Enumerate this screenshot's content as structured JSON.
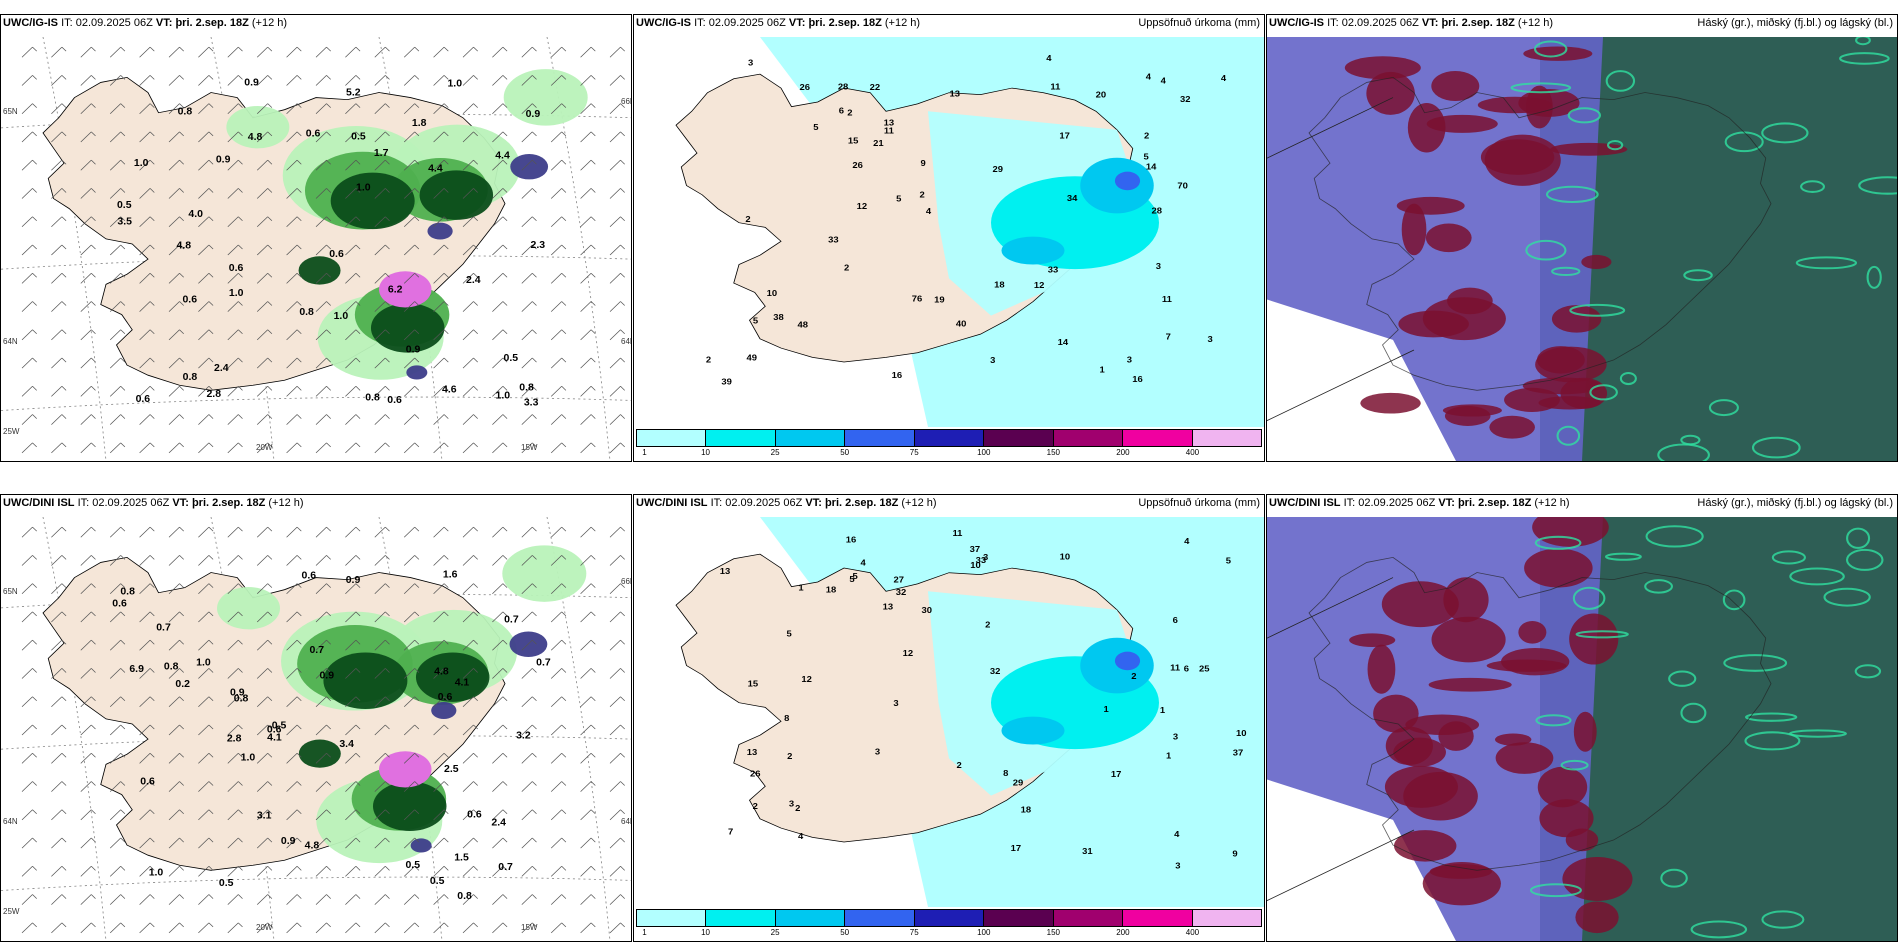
{
  "panels": [
    {
      "id": "p1",
      "model": "UWC/IG-IS",
      "it_label": "IT:",
      "it_value": "02.09.2025 06Z",
      "vt_label": "VT:",
      "vt_value": "þri. 2.sep. 18Z",
      "lead": "(+12 h)",
      "right_title": "",
      "type": "precip_wind",
      "values": [
        "0.6",
        "0.6",
        "0.5",
        "0.9",
        "0.6",
        "0.8",
        "0.5",
        "0.8",
        "0.6",
        "1.0",
        "1.0",
        "0.6",
        "0.9",
        "0.8",
        "0.9",
        "2.8",
        "3.3",
        "4.8",
        "5.2",
        "4.0",
        "3.5",
        "2.3",
        "6.2",
        "4.4",
        "2.4",
        "0.6",
        "1.0",
        "0.8",
        "1.0",
        "0.5",
        "0.8",
        "1.7",
        "4.4",
        "4.8",
        "2.4",
        "1.0",
        "0.9",
        "4.6",
        "1.8",
        "1.0"
      ],
      "axis": [
        "20W",
        "15W",
        "65N",
        "64N",
        "25W",
        "66N",
        "64N"
      ]
    },
    {
      "id": "p2",
      "model": "UWC/IG-IS",
      "it_label": "IT:",
      "it_value": "02.09.2025 06Z",
      "vt_label": "VT:",
      "vt_value": "þri. 2.sep. 18Z",
      "lead": "(+12 h)",
      "right_title": "Uppsöfnuð úrkoma (mm)",
      "type": "accum",
      "values": [
        "4",
        "2",
        "4",
        "3",
        "2",
        "3",
        "4",
        "16",
        "14",
        "10",
        "18",
        "17",
        "49",
        "76",
        "70",
        "39",
        "34",
        "33",
        "21",
        "20",
        "26",
        "28",
        "32",
        "38",
        "48",
        "40",
        "29",
        "19",
        "28",
        "14",
        "13",
        "12",
        "22",
        "33",
        "26",
        "16",
        "13",
        "11",
        "15",
        "11",
        "12",
        "9",
        "5",
        "5",
        "2",
        "2",
        "3",
        "11",
        "6",
        "7",
        "4",
        "5",
        "5",
        "1",
        "2",
        "4",
        "3",
        "3",
        "2"
      ],
      "colorbar": [
        "1",
        "10",
        "25",
        "50",
        "75",
        "100",
        "150",
        "200",
        "400"
      ]
    },
    {
      "id": "p3",
      "model": "UWC/IG-IS",
      "it_label": "IT:",
      "it_value": "02.09.2025 06Z",
      "vt_label": "VT:",
      "vt_value": "þri. 2.sep. 18Z",
      "lead": "(+12 h)",
      "right_title": "Háský (gr.), miðský (fj.bl.) og lágský (bl.)",
      "type": "cloud"
    },
    {
      "id": "p4",
      "model": "UWC/DINI ISL",
      "it_label": "IT:",
      "it_value": "02.09.2025 06Z",
      "vt_label": "VT:",
      "vt_value": "þri. 2.sep. 18Z",
      "lead": "(+12 h)",
      "right_title": "",
      "type": "precip_wind",
      "values": [
        "0.5",
        "0.7",
        "0.9",
        "1.5",
        "0.8",
        "0.7",
        "1.0",
        "0.6",
        "0.5",
        "0.5",
        "0.6",
        "0.5",
        "0.7",
        "0.6",
        "0.9",
        "0.8",
        "2.8",
        "2.4",
        "6.9",
        "3.1",
        "4.1",
        "0.6",
        "0.8",
        "0.6",
        "1.0",
        "4.8",
        "3.2",
        "2.5",
        "0.2",
        "0.6",
        "1.0",
        "4.8",
        "4.1",
        "3.4",
        "0.9",
        "0.7",
        "0.9",
        "0.7",
        "1.6",
        "0.8"
      ],
      "axis": [
        "20W",
        "15W",
        "65N",
        "64N",
        "25W",
        "66N",
        "64N"
      ]
    },
    {
      "id": "p5",
      "model": "UWC/DINI ISL",
      "it_label": "IT:",
      "it_value": "02.09.2025 06Z",
      "vt_label": "VT:",
      "vt_value": "þri. 2.sep. 18Z",
      "lead": "(+12 h)",
      "right_title": "Uppsöfnuð úrkoma (mm)",
      "type": "accum",
      "values": [
        "2",
        "2",
        "1",
        "4",
        "3",
        "2",
        "17",
        "4",
        "5",
        "4",
        "8",
        "10",
        "9",
        "10",
        "18",
        "30",
        "32",
        "32",
        "37",
        "33",
        "31",
        "29",
        "25",
        "18",
        "37",
        "26",
        "27",
        "13",
        "12",
        "13",
        "15",
        "13",
        "11",
        "11",
        "17",
        "16",
        "10",
        "8",
        "6",
        "3",
        "2",
        "7",
        "6",
        "5",
        "2",
        "3",
        "1",
        "3",
        "3",
        "4",
        "5",
        "12",
        "5",
        "1",
        "3",
        "2",
        "1"
      ],
      "colorbar": [
        "1",
        "10",
        "25",
        "50",
        "75",
        "100",
        "150",
        "200",
        "400"
      ]
    },
    {
      "id": "p6",
      "model": "UWC/DINI ISL",
      "it_label": "IT:",
      "it_value": "02.09.2025 06Z",
      "vt_label": "VT:",
      "vt_value": "þri. 2.sep. 18Z",
      "lead": "(+12 h)",
      "right_title": "Háský (gr.), miðský (fj.bl.) og lágský (bl.)",
      "type": "cloud"
    }
  ],
  "colors": {
    "land": "#f5e6d8",
    "sea": "#ffffff",
    "precip_light": "#b9f2b9",
    "precip_mid": "#4fb04f",
    "precip_dark": "#0b4d1a",
    "precip_heavy": "#3d3d8a",
    "precip_extreme": "#e070e0",
    "colorbar": [
      "#b2ffff",
      "#00f0f0",
      "#00c8f0",
      "#3264f0",
      "#1e1eb4",
      "#5a0050",
      "#a0006e",
      "#f000a0",
      "#f0b4f0"
    ],
    "cloud_high": "#2e5e55",
    "cloud_mid": "#6464c8",
    "cloud_low": "#7a1030"
  }
}
